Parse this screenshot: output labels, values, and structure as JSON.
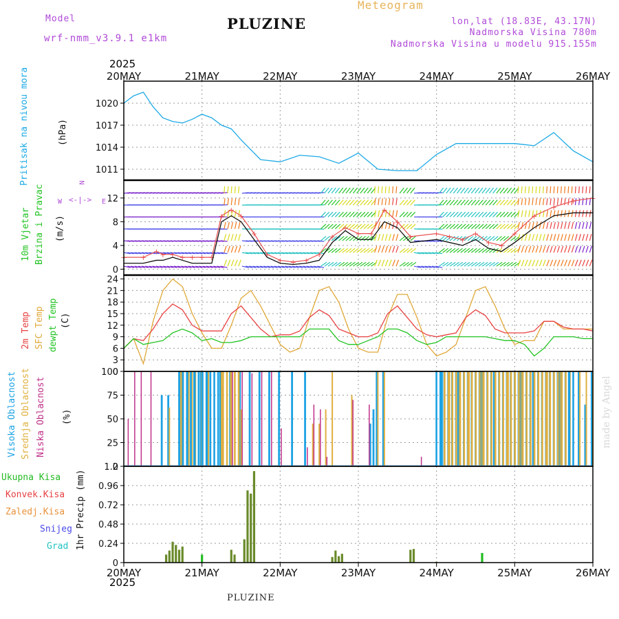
{
  "header": {
    "model_label": "Model",
    "model_name": "wrf-nmm_v3.9.1 e1km",
    "title": "PLUZINE",
    "meteogram": "Meteogram",
    "lonlat": "lon,lat (18.83E, 43.17N)",
    "altitude": "Nadmorska Visina 780m",
    "model_altitude": "Nadmorska Visina u modelu 915.155m"
  },
  "footer": {
    "station": "PLUZINE",
    "credit": "made by Angel"
  },
  "time_axis": {
    "year": "2025",
    "labels": [
      "20MAY",
      "21MAY",
      "22MAY",
      "23MAY",
      "24MAY",
      "25MAY",
      "26MAY"
    ]
  },
  "panels": {
    "pressure": {
      "label1": "Pritisak na nivou mora",
      "unit": "(hPa)"
    },
    "wind": {
      "label1": "10m Vjetar",
      "label2": "Brzina i Pravac",
      "unit": "(m/s)"
    },
    "temp": {
      "label1": "2m Temp",
      "label2": "SFC Temp",
      "label3": "dewpt Temp",
      "unit": "(C)"
    },
    "cloud": {
      "label1": "Visoka Oblacnost",
      "label2": "Srednja Oblacnost",
      "label3": "Niska Oblacnost",
      "unit": "(%)"
    },
    "precip": {
      "unit": "1hr Precip (mm)",
      "legend": [
        "Ukupna Kisa",
        "Konvek.Kisa",
        "Zaledj.Kisa",
        "Snijeg",
        "Grad"
      ]
    }
  },
  "compass": {
    "n": "N",
    "w": "W",
    "e": "E"
  },
  "colors": {
    "pressure": "#1ca9e6",
    "wind_speed": "#111111",
    "gust": "#e85050",
    "t2m": "#e84040",
    "tsfc": "#e0a838",
    "dewpt": "#22c322",
    "cloud_high": "#1ca2e4",
    "cloud_mid": "#e0b040",
    "cloud_low": "#c0308a",
    "precip_total": "#22bb22",
    "precip_conv": "#b0304a",
    "precip_frozen": "#e8923a",
    "snow": "#4a4ae8",
    "hail": "#22c2c2"
  },
  "chart_data": [
    {
      "type": "line",
      "title": "",
      "ylabel": "Pritisak na nivou mora (hPa)",
      "ylim": [
        1009.5,
        1023
      ],
      "yticks": [
        1011,
        1014,
        1017,
        1020
      ],
      "x_hours": [
        0,
        3,
        6,
        9,
        12,
        15,
        18,
        21,
        24,
        27,
        30,
        33,
        36,
        42,
        48,
        54,
        60,
        66,
        72,
        78,
        84,
        90,
        96,
        102,
        108,
        114,
        120,
        126,
        132,
        138,
        144
      ],
      "series": [
        {
          "values": [
            1020,
            1021,
            1021.5,
            1019.5,
            1018,
            1017.5,
            1017.3,
            1017.8,
            1018.5,
            1018,
            1017,
            1016.5,
            1015,
            1012.3,
            1012,
            1012.9,
            1012.7,
            1011.8,
            1013.2,
            1011,
            1010.8,
            1010.8,
            1013,
            1014.5,
            1014.5,
            1014.5,
            1014.5,
            1014.2,
            1016,
            1013.5,
            1012
          ]
        }
      ],
      "grid": true
    },
    {
      "type": "line",
      "ylabel": "10m Vjetar Brzina i Pravac (m/s)",
      "ylim": [
        -1,
        15
      ],
      "yticks": [
        0,
        4,
        8,
        12
      ],
      "x_hours": [
        0,
        6,
        10,
        12,
        15,
        18,
        21,
        24,
        27,
        30,
        33,
        36,
        40,
        44,
        48,
        52,
        56,
        60,
        64,
        68,
        72,
        76,
        80,
        84,
        88,
        96,
        100,
        104,
        108,
        112,
        116,
        120,
        126,
        132,
        138,
        144
      ],
      "series": [
        {
          "values": [
            1,
            1,
            1.5,
            1.5,
            2,
            1.5,
            1,
            1,
            1,
            8,
            9,
            8,
            5,
            2,
            1,
            0.8,
            1,
            1.5,
            4.5,
            6.5,
            5,
            5,
            8,
            7,
            4.5,
            5,
            4.5,
            4,
            5,
            3.5,
            3,
            4.5,
            7,
            9,
            9.5,
            9.5
          ]
        },
        {
          "values": [
            2,
            2,
            3,
            2.5,
            2.5,
            2,
            2,
            2,
            2,
            9,
            10,
            9,
            6,
            2.5,
            1.5,
            1.2,
            1.5,
            2.5,
            5.5,
            7,
            6,
            6,
            10,
            8,
            5.5,
            6,
            5.5,
            5,
            6,
            4.5,
            4,
            6,
            9,
            10.5,
            11.5,
            12
          ]
        }
      ],
      "grid": true
    },
    {
      "type": "line",
      "ylabel": "2m Temp / SFC Temp / dewpt Temp (C)",
      "ylim": [
        0,
        25
      ],
      "yticks": [
        0,
        3,
        6,
        9,
        12,
        15,
        18,
        21,
        24
      ],
      "x_hours": [
        0,
        3,
        6,
        9,
        12,
        15,
        18,
        21,
        24,
        27,
        30,
        33,
        36,
        39,
        42,
        45,
        48,
        51,
        54,
        57,
        60,
        63,
        66,
        69,
        72,
        75,
        78,
        81,
        84,
        87,
        90,
        93,
        96,
        99,
        102,
        105,
        108,
        111,
        114,
        117,
        120,
        123,
        126,
        129,
        132,
        135,
        138,
        141,
        144
      ],
      "series": [
        {
          "values": [
            6,
            8.5,
            8,
            11,
            15,
            17.5,
            16,
            12,
            10.5,
            10.5,
            10.5,
            15,
            17,
            14,
            11,
            9,
            9.5,
            9.5,
            10.5,
            14,
            16,
            14.5,
            11,
            10,
            9,
            9,
            10,
            15,
            17,
            14,
            11,
            9.5,
            9,
            9.5,
            10,
            14,
            16,
            14.5,
            11,
            10,
            10,
            10,
            10.5,
            13,
            13,
            11.5,
            11,
            11,
            10.5
          ]
        },
        {
          "values": [
            6,
            8.5,
            2,
            13,
            21,
            24,
            22,
            15,
            10,
            6,
            6,
            12,
            19,
            21,
            17,
            12,
            7,
            5,
            6,
            14,
            21,
            22,
            18,
            11,
            6,
            5,
            5,
            14,
            20,
            20,
            14,
            7,
            4,
            5,
            7,
            14,
            21,
            22,
            17,
            11,
            7,
            8,
            8,
            13,
            13,
            11,
            11,
            11,
            11
          ]
        },
        {
          "values": [
            6,
            8.5,
            7,
            7.5,
            8,
            10,
            11,
            10,
            8,
            8.5,
            7.5,
            7.5,
            8,
            9,
            9,
            9,
            9,
            9,
            9,
            11,
            11,
            11,
            8,
            7,
            7,
            8,
            9,
            11,
            11,
            10,
            8,
            7,
            7.5,
            9,
            9,
            9,
            9,
            9,
            8.5,
            8,
            8,
            7,
            4,
            6,
            9,
            9,
            9,
            8.5,
            8.5
          ]
        }
      ],
      "grid": true
    },
    {
      "type": "bar",
      "ylabel": "Visoka / Srednja / Niska Oblacnost (%)",
      "ylim": [
        0,
        100
      ],
      "yticks": [
        0,
        25,
        50,
        75,
        100
      ],
      "x_hours": [
        1,
        3,
        5,
        8,
        9,
        12,
        14,
        17,
        17.5,
        18,
        20,
        21,
        22,
        24,
        26,
        30,
        33,
        36,
        39,
        42,
        45,
        48,
        52,
        56,
        58,
        60,
        62,
        64,
        66,
        70,
        75,
        76,
        77,
        78,
        80,
        82,
        84,
        86,
        88,
        91,
        96,
        98,
        100,
        103,
        106,
        110,
        114,
        118,
        122,
        126,
        130,
        134,
        137,
        140,
        142,
        144
      ],
      "series": [
        {
          "name": "Visoka Oblacnost",
          "values": [
            0,
            0,
            0,
            0,
            0,
            75,
            75,
            0,
            100,
            100,
            100,
            100,
            100,
            100,
            100,
            100,
            100,
            100,
            100,
            100,
            100,
            100,
            100,
            100,
            0,
            0,
            0,
            0,
            0,
            0,
            0,
            45,
            60,
            100,
            100,
            0,
            0,
            0,
            0,
            0,
            0,
            100,
            100,
            100,
            100,
            100,
            100,
            100,
            100,
            100,
            100,
            100,
            100,
            100,
            65,
            100
          ]
        },
        {
          "name": "Srednja Oblacnost",
          "values": [
            0,
            0,
            0,
            0,
            0,
            0,
            62,
            100,
            100,
            100,
            100,
            100,
            100,
            100,
            100,
            100,
            100,
            60,
            0,
            0,
            0,
            0,
            0,
            0,
            45,
            45,
            60,
            100,
            0,
            75,
            0,
            0,
            0,
            100,
            100,
            0,
            0,
            0,
            0,
            0,
            0,
            0,
            100,
            100,
            100,
            100,
            100,
            100,
            100,
            100,
            100,
            100,
            100,
            100,
            100,
            100
          ]
        },
        {
          "name": "Niska Oblacnost",
          "values": [
            50,
            100,
            100,
            100,
            0,
            0,
            0,
            0,
            0,
            0,
            0,
            0,
            0,
            0,
            0,
            85,
            100,
            100,
            98,
            100,
            100,
            40,
            0,
            20,
            65,
            60,
            10,
            0,
            0,
            70,
            65,
            0,
            0,
            0,
            0,
            0,
            0,
            0,
            0,
            10,
            0,
            0,
            0,
            0,
            0,
            0,
            0,
            0,
            0,
            0,
            0,
            0,
            0,
            0,
            0,
            0
          ]
        }
      ],
      "grid": true
    },
    {
      "type": "bar",
      "ylabel": "1hr Precip (mm)",
      "ylim": [
        0,
        1.2
      ],
      "yticks": [
        0,
        0.24,
        0.48,
        0.72,
        0.96,
        1.2
      ],
      "x_hours": [
        13,
        14,
        15,
        16,
        17,
        18,
        19,
        24,
        33,
        34,
        35,
        37,
        38,
        39,
        40,
        41,
        64,
        65,
        66,
        67,
        69,
        88,
        89,
        90,
        96,
        98,
        100,
        110,
        110.5,
        111,
        112
      ],
      "series": [
        {
          "name": "Ukupna Kisa",
          "values": [
            0.1,
            0.15,
            0.26,
            0.22,
            0.16,
            0.2,
            0.0,
            0.1,
            0.16,
            0.1,
            0.0,
            0.29,
            0.9,
            0.86,
            1.14,
            0.0,
            0.07,
            0.15,
            0.08,
            0.11,
            0.0,
            0.16,
            0.17,
            0.0,
            0.01,
            0.0,
            0.0,
            0.12,
            0.0,
            0.0,
            0.0
          ]
        }
      ],
      "grid": true
    }
  ]
}
